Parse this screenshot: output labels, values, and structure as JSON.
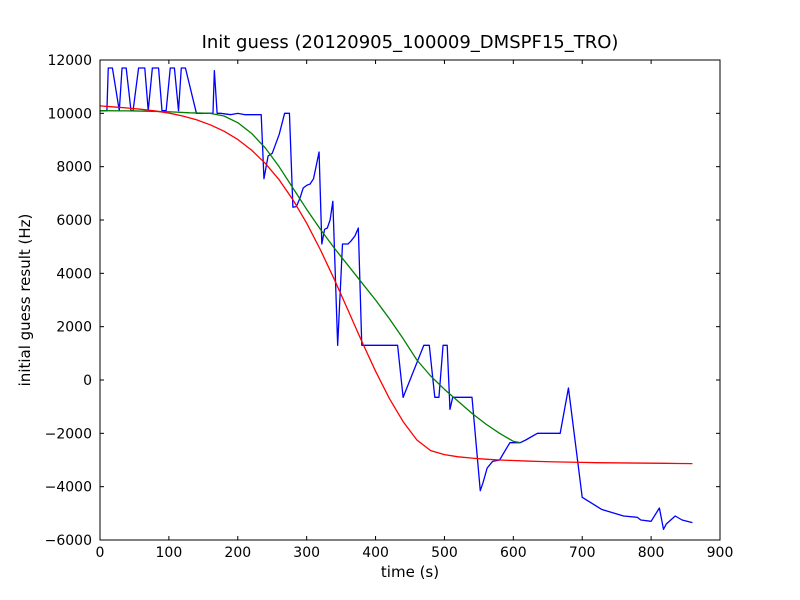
{
  "chart_data": {
    "type": "line",
    "title": "Init guess (20120905_100009_DMSPF15_TRO)",
    "xlabel": "time (s)",
    "ylabel": "initial guess result (Hz)",
    "xlim": [
      0,
      900
    ],
    "ylim": [
      -6000,
      12000
    ],
    "x_ticks": [
      "0",
      "100",
      "200",
      "300",
      "400",
      "500",
      "600",
      "700",
      "800",
      "900"
    ],
    "y_ticks": [
      "−6000",
      "−4000",
      "−2000",
      "0",
      "2000",
      "4000",
      "6000",
      "8000",
      "10000",
      "12000"
    ],
    "grid": false,
    "legend": "none",
    "series": [
      {
        "color": "#0000ff",
        "x": [
          0,
          10,
          12,
          18,
          28,
          32,
          38,
          45,
          48,
          56,
          65,
          70,
          76,
          85,
          90,
          96,
          102,
          108,
          114,
          118,
          124,
          140,
          164,
          166,
          170,
          175,
          190,
          200,
          210,
          234,
          238,
          244,
          250,
          260,
          268,
          275,
          280,
          285,
          290,
          295,
          300,
          305,
          310,
          318,
          322,
          326,
          330,
          334,
          338,
          345,
          352,
          356,
          360,
          364,
          370,
          375,
          380,
          395,
          430,
          432,
          440,
          470,
          474,
          478,
          486,
          492,
          498,
          504,
          508,
          512,
          514,
          518,
          526,
          536,
          540,
          552,
          556,
          562,
          570,
          580,
          595,
          604,
          610,
          618,
          635,
          650,
          668,
          680,
          700,
          728,
          760,
          780,
          785,
          800,
          812,
          818,
          822,
          835,
          845,
          860
        ],
        "y": [
          10100,
          10100,
          11700,
          11700,
          10100,
          11700,
          11700,
          10100,
          10100,
          11700,
          11700,
          10100,
          11700,
          11700,
          10100,
          10100,
          11700,
          11700,
          10100,
          11700,
          11700,
          10000,
          10000,
          11600,
          10000,
          10000,
          9950,
          10000,
          9950,
          9950,
          7550,
          8400,
          8500,
          9200,
          10000,
          10000,
          6480,
          6500,
          6800,
          7200,
          7300,
          7350,
          7550,
          8550,
          5100,
          5650,
          5700,
          6000,
          6700,
          1300,
          5100,
          5100,
          5100,
          5200,
          5400,
          5700,
          1300,
          1300,
          1300,
          1300,
          -650,
          1300,
          1300,
          1300,
          -650,
          -650,
          1300,
          1300,
          -1100,
          -650,
          -650,
          -650,
          -650,
          -650,
          -650,
          -4150,
          -3850,
          -3300,
          -3050,
          -3000,
          -2350,
          -2350,
          -2350,
          -2250,
          -2000,
          -2000,
          -2000,
          -300,
          -4400,
          -4850,
          -5100,
          -5150,
          -5250,
          -5300,
          -4800,
          -5600,
          -5400,
          -5100,
          -5250,
          -5350
        ]
      },
      {
        "color": "#008000",
        "x": [
          0,
          50,
          100,
          130,
          160,
          180,
          200,
          220,
          240,
          260,
          280,
          300,
          320,
          340,
          360,
          380,
          400,
          420,
          440,
          460,
          480,
          500,
          520,
          540,
          560,
          580,
          600,
          610
        ],
        "y": [
          10100,
          10090,
          10060,
          10020,
          10000,
          9900,
          9650,
          9250,
          8700,
          8000,
          7200,
          6400,
          5650,
          4950,
          4300,
          3650,
          3000,
          2300,
          1550,
          750,
          150,
          -350,
          -800,
          -1250,
          -1650,
          -2000,
          -2300,
          -2350
        ]
      },
      {
        "color": "#ff0000",
        "x": [
          0,
          20,
          40,
          60,
          80,
          100,
          120,
          140,
          160,
          180,
          200,
          220,
          240,
          260,
          280,
          300,
          320,
          340,
          360,
          380,
          400,
          420,
          440,
          460,
          480,
          500,
          520,
          540,
          560,
          580,
          600,
          620,
          640,
          660,
          680,
          700,
          720,
          740,
          760,
          780,
          800,
          820,
          840,
          860
        ],
        "y": [
          10280,
          10240,
          10200,
          10150,
          10090,
          10010,
          9900,
          9760,
          9570,
          9330,
          9020,
          8620,
          8120,
          7510,
          6760,
          5880,
          4880,
          3780,
          2620,
          1450,
          330,
          -690,
          -1560,
          -2250,
          -2650,
          -2800,
          -2880,
          -2930,
          -2970,
          -3000,
          -3020,
          -3040,
          -3055,
          -3070,
          -3080,
          -3090,
          -3100,
          -3105,
          -3110,
          -3115,
          -3120,
          -3125,
          -3130,
          -3135
        ]
      }
    ]
  }
}
